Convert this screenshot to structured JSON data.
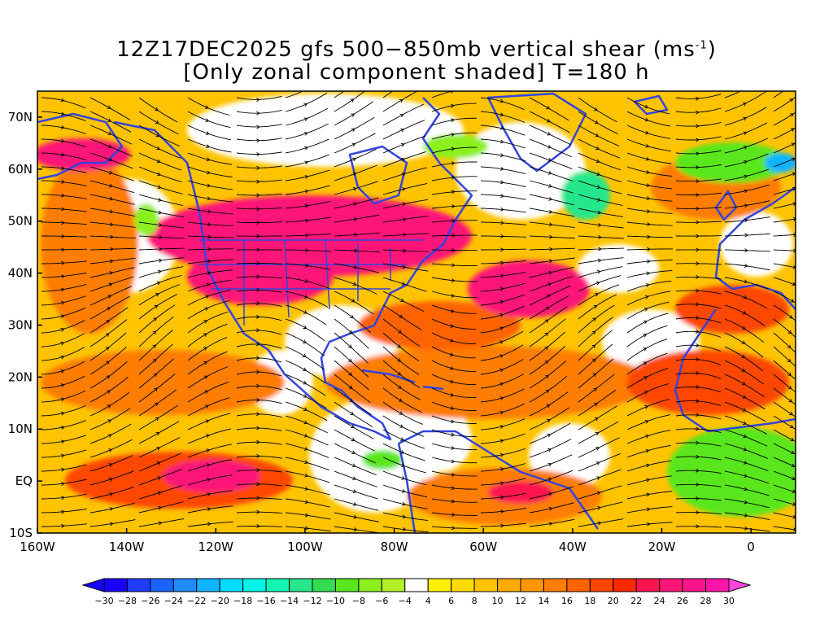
{
  "title": {
    "line1_prefix": "12Z17DEC2025 gfs 500−850mb vertical shear (ms",
    "line1_sup": "-1",
    "line1_suffix": ")",
    "line2": "[Only zonal component shaded] T=180 h"
  },
  "map": {
    "lon_range": [
      -160,
      10
    ],
    "lat_range": [
      -10,
      75
    ],
    "land_outline_color": "#3344dd",
    "streamline_color": "#000000",
    "lat_labels": [
      "70N",
      "60N",
      "50N",
      "40N",
      "30N",
      "20N",
      "10N",
      "EQ",
      "10S"
    ],
    "lat_values": [
      70,
      60,
      50,
      40,
      30,
      20,
      10,
      0,
      -10
    ],
    "lon_labels": [
      "160W",
      "140W",
      "120W",
      "100W",
      "80W",
      "60W",
      "40W",
      "20W",
      "0"
    ],
    "lon_values": [
      -160,
      -140,
      -120,
      -100,
      -80,
      -60,
      -40,
      -20,
      0
    ]
  },
  "colorbar": {
    "labels": [
      "-30",
      "-28",
      "-26",
      "-24",
      "-22",
      "-20",
      "-18",
      "-16",
      "-14",
      "-12",
      "-10",
      "-8",
      "-6",
      "-4",
      "4",
      "6",
      "8",
      "10",
      "12",
      "14",
      "16",
      "18",
      "20",
      "22",
      "24",
      "26",
      "28",
      "30"
    ],
    "colors": [
      "#1a00ff",
      "#1f3cff",
      "#1c64ff",
      "#1e8cff",
      "#10b4ff",
      "#00dcff",
      "#00f5e6",
      "#14f5b4",
      "#28e68c",
      "#32dc50",
      "#5ae61e",
      "#8cf01e",
      "#b4f028",
      "#ffffff",
      "#fff000",
      "#ffdc00",
      "#ffc300",
      "#ffaa00",
      "#ff9600",
      "#ff7d00",
      "#ff6400",
      "#ff4600",
      "#ff2800",
      "#ff1450",
      "#ff1478",
      "#ff148c",
      "#ff14aa"
    ],
    "low_arrow_color": "#1a00ff",
    "high_arrow_color": "#ff46dc"
  }
}
